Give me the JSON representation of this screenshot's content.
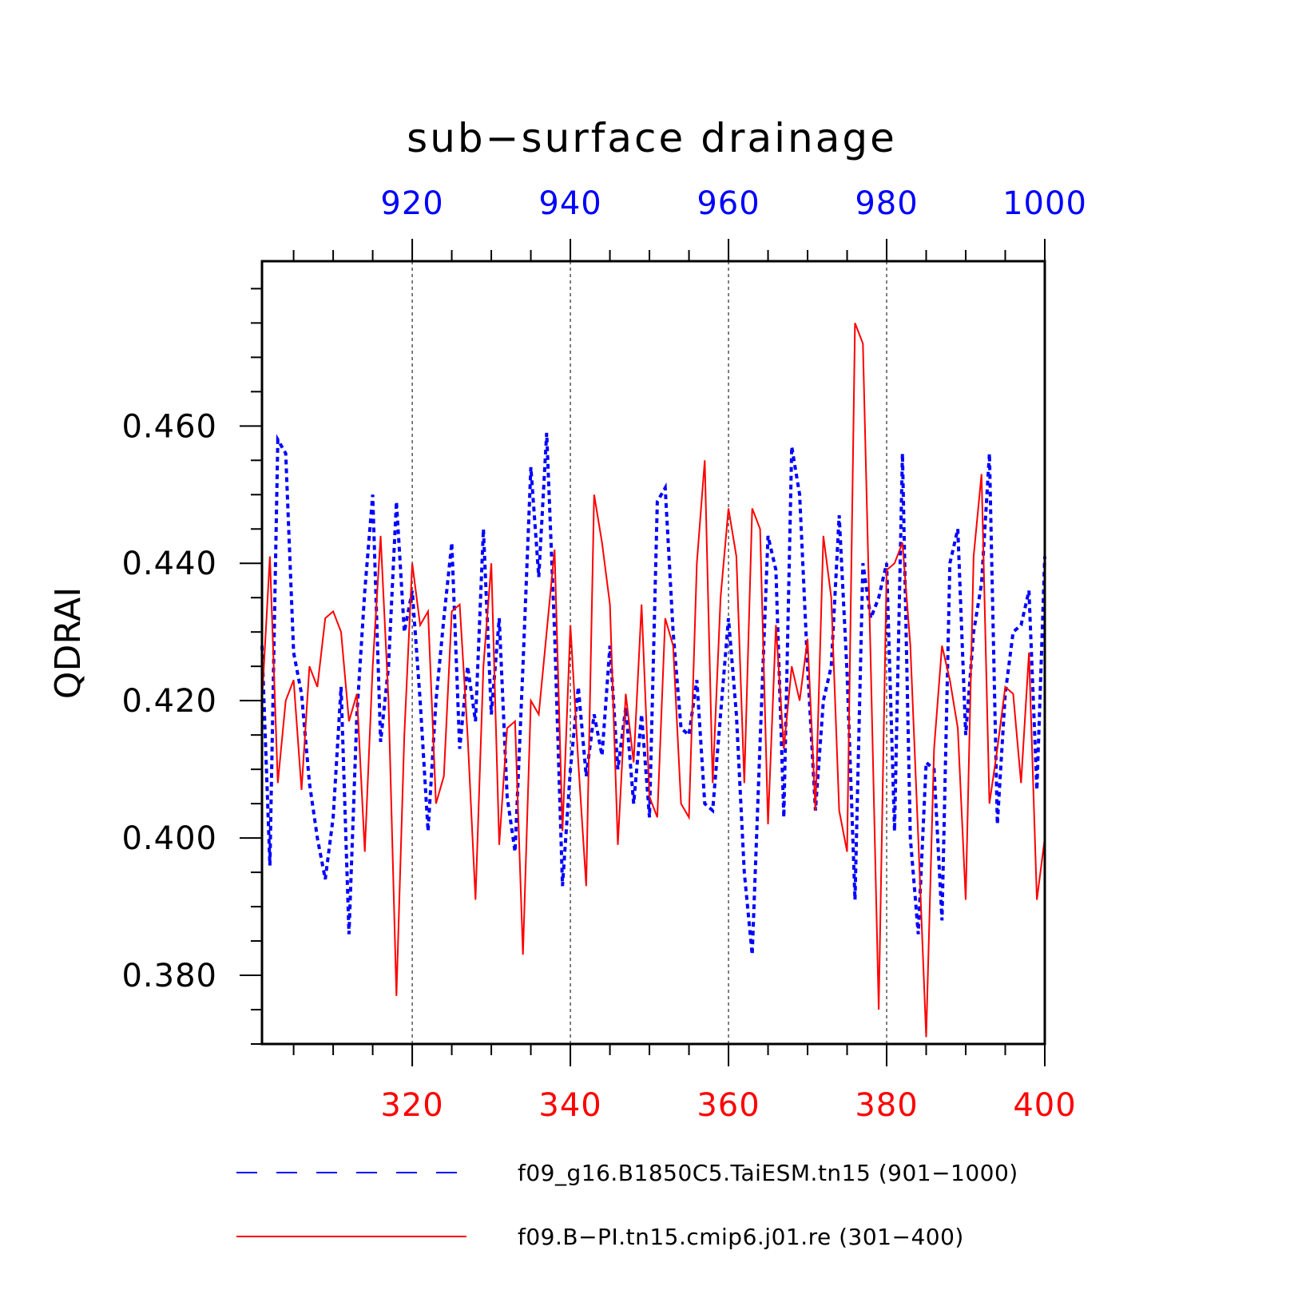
{
  "chart_data": {
    "type": "line",
    "title": "sub−surface drainage",
    "ylabel": "QDRAI",
    "ylim": [
      0.37,
      0.484
    ],
    "yticks": [
      0.38,
      0.4,
      0.42,
      0.44,
      0.46
    ],
    "ytick_labels": [
      "0.380",
      "0.400",
      "0.420",
      "0.440",
      "0.460"
    ],
    "ytick_minor_step": 0.005,
    "grid_x": true,
    "legend_position": "bottom",
    "colors": {
      "top_axis": "#0000ff",
      "bottom_axis": "#ff0000",
      "frame": "#000000"
    },
    "axes": {
      "top": {
        "range": [
          901,
          1000
        ],
        "ticks": [
          920,
          940,
          960,
          980,
          1000
        ],
        "minor_step": 5
      },
      "bottom": {
        "range": [
          301,
          400
        ],
        "ticks": [
          320,
          340,
          360,
          380,
          400
        ],
        "minor_step": 5
      }
    },
    "series": [
      {
        "name": "f09_g16.B1850C5.TaiESM.tn15 (901−1000)",
        "axis": "top",
        "color": "#0000ff",
        "dash": "dashed",
        "x_start": 901,
        "values": [
          0.428,
          0.396,
          0.458,
          0.456,
          0.427,
          0.421,
          0.408,
          0.4,
          0.394,
          0.403,
          0.422,
          0.386,
          0.418,
          0.436,
          0.45,
          0.414,
          0.425,
          0.449,
          0.43,
          0.436,
          0.42,
          0.401,
          0.42,
          0.432,
          0.443,
          0.413,
          0.425,
          0.417,
          0.445,
          0.418,
          0.432,
          0.406,
          0.398,
          0.425,
          0.454,
          0.438,
          0.459,
          0.43,
          0.393,
          0.41,
          0.422,
          0.409,
          0.418,
          0.412,
          0.428,
          0.41,
          0.419,
          0.405,
          0.418,
          0.403,
          0.449,
          0.451,
          0.43,
          0.416,
          0.415,
          0.423,
          0.405,
          0.404,
          0.418,
          0.432,
          0.418,
          0.395,
          0.383,
          0.414,
          0.444,
          0.439,
          0.403,
          0.457,
          0.45,
          0.425,
          0.404,
          0.42,
          0.425,
          0.447,
          0.424,
          0.391,
          0.44,
          0.432,
          0.435,
          0.44,
          0.401,
          0.456,
          0.4,
          0.386,
          0.411,
          0.41,
          0.388,
          0.44,
          0.445,
          0.415,
          0.43,
          0.437,
          0.456,
          0.402,
          0.421,
          0.43,
          0.431,
          0.436,
          0.407,
          0.441
        ]
      },
      {
        "name": "f09.B−PI.tn15.cmip6.j01.re (301−400)",
        "axis": "bottom",
        "color": "#ff0000",
        "dash": "solid",
        "x_start": 301,
        "values": [
          0.42,
          0.441,
          0.408,
          0.42,
          0.423,
          0.407,
          0.425,
          0.422,
          0.432,
          0.433,
          0.43,
          0.417,
          0.421,
          0.398,
          0.425,
          0.444,
          0.42,
          0.377,
          0.415,
          0.44,
          0.431,
          0.433,
          0.405,
          0.409,
          0.433,
          0.434,
          0.415,
          0.391,
          0.425,
          0.44,
          0.399,
          0.416,
          0.417,
          0.383,
          0.42,
          0.418,
          0.43,
          0.442,
          0.401,
          0.431,
          0.411,
          0.393,
          0.45,
          0.443,
          0.434,
          0.399,
          0.421,
          0.411,
          0.434,
          0.406,
          0.403,
          0.432,
          0.428,
          0.405,
          0.403,
          0.44,
          0.455,
          0.408,
          0.435,
          0.448,
          0.441,
          0.408,
          0.448,
          0.445,
          0.402,
          0.431,
          0.413,
          0.425,
          0.42,
          0.429,
          0.404,
          0.444,
          0.435,
          0.404,
          0.398,
          0.475,
          0.472,
          0.425,
          0.375,
          0.439,
          0.44,
          0.443,
          0.428,
          0.4,
          0.371,
          0.413,
          0.428,
          0.423,
          0.416,
          0.391,
          0.441,
          0.453,
          0.405,
          0.413,
          0.422,
          0.421,
          0.408,
          0.427,
          0.391,
          0.4
        ]
      }
    ]
  }
}
